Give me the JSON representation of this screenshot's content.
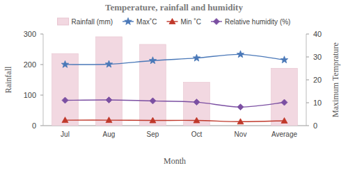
{
  "chart_data": {
    "type": "bar",
    "title": "Temperature, rainfall and humidity",
    "x_label": "Month",
    "y_label": "Rainfall",
    "y2_label": "Maximum Temprature",
    "categories": [
      "Jul",
      "Aug",
      "Sep",
      "Oct",
      "Nov",
      "Average"
    ],
    "ylim": [
      0,
      300
    ],
    "yticks": [
      0,
      100,
      200,
      300
    ],
    "y2lim": [
      0,
      40
    ],
    "y2ticks": [
      0,
      10,
      20,
      30,
      40
    ],
    "legend": "top",
    "series": [
      {
        "name": "Rainfall (mm)",
        "type": "bar",
        "color": "#f2d8e1",
        "values": [
          236,
          291,
          266,
          142,
          0,
          188
        ]
      },
      {
        "name": "Max˚C",
        "type": "line",
        "axis": "y2",
        "color": "#4a78b8",
        "marker": "star",
        "values": [
          26.7,
          26.8,
          28.4,
          29.5,
          31.1,
          28.7
        ]
      },
      {
        "name": "Min ˚C",
        "type": "line",
        "color": "#c0392b",
        "marker": "triangle",
        "values": [
          18,
          18,
          17,
          17,
          13,
          16
        ]
      },
      {
        "name": "Relative humidity (%)",
        "type": "line",
        "color": "#7b4fa2",
        "marker": "diamond",
        "values": [
          83,
          84,
          81,
          77,
          61,
          76
        ]
      }
    ]
  }
}
